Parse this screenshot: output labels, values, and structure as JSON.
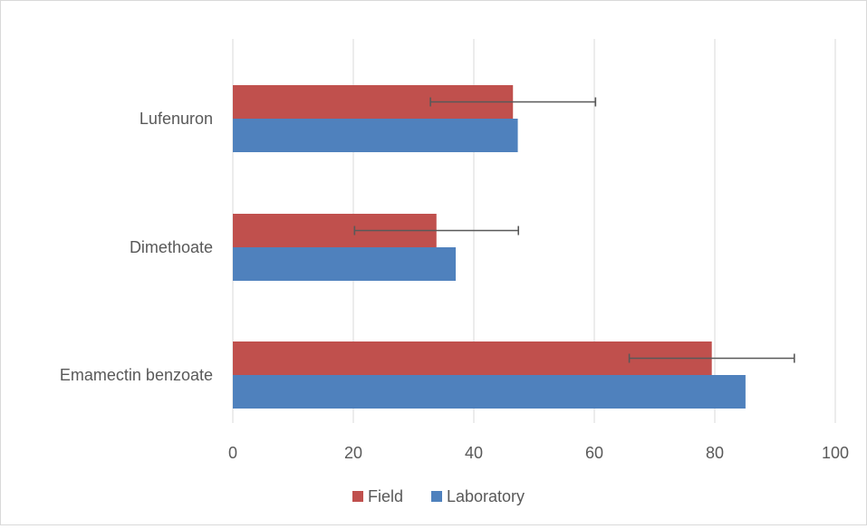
{
  "chart_data": {
    "type": "bar",
    "orientation": "horizontal",
    "title": "",
    "xlabel": "",
    "ylabel": "",
    "categories": [
      "Lufenuron",
      "Dimethoate",
      "Emamectin benzoate"
    ],
    "series": [
      {
        "name": "Field",
        "color": "#c0504d",
        "values": [
          46.5,
          33.8,
          79.5
        ],
        "error": [
          13.7,
          13.6,
          13.7
        ]
      },
      {
        "name": "Laboratory",
        "color": "#4f81bd",
        "values": [
          47.3,
          37.0,
          85.1
        ]
      }
    ],
    "xlim": [
      0,
      100
    ],
    "xticks": [
      "0",
      "20",
      "40",
      "60",
      "80",
      "100"
    ],
    "grid": true,
    "legend_position": "bottom"
  }
}
